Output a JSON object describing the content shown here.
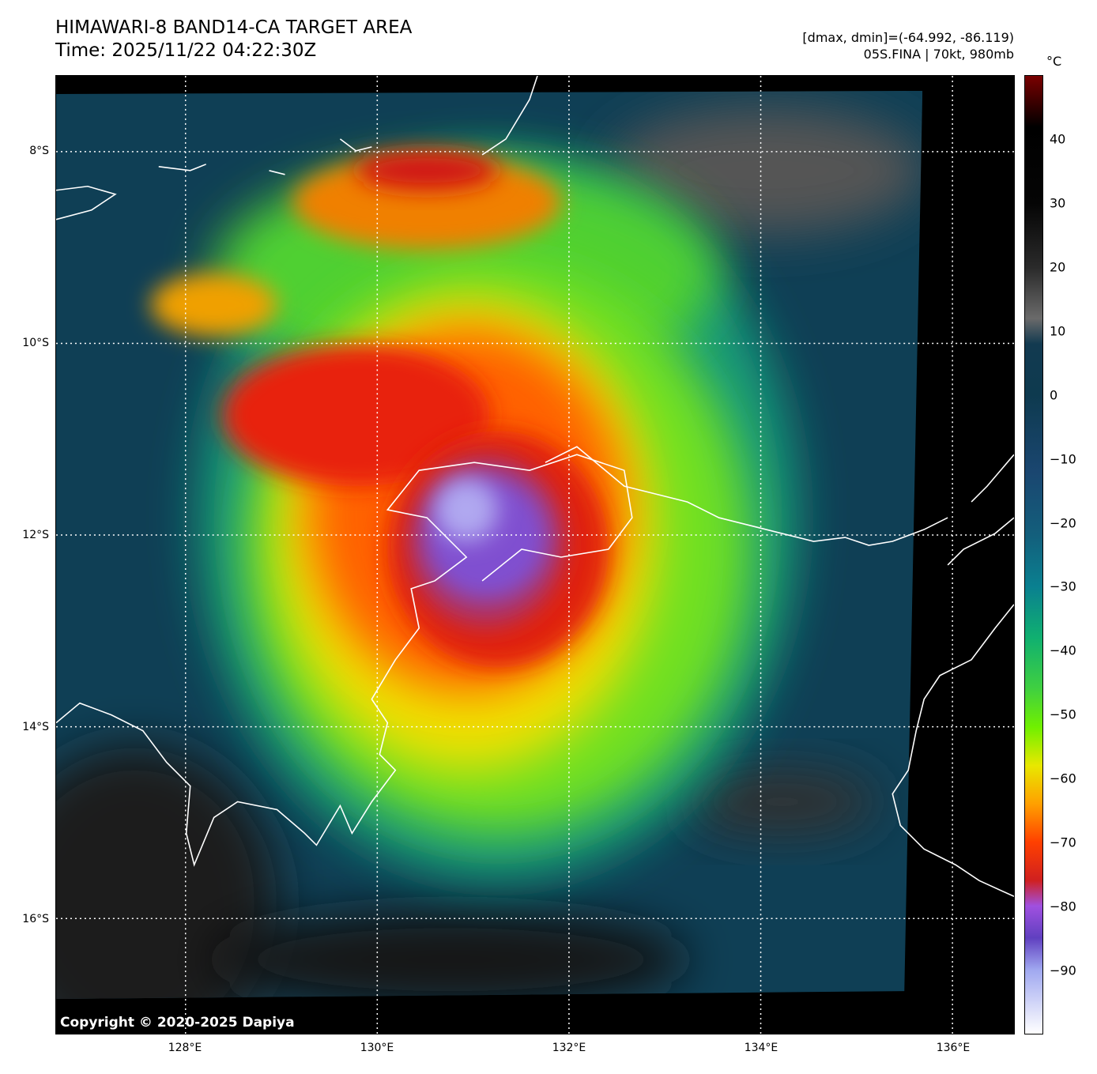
{
  "header": {
    "title": "HIMAWARI-8 BAND14-CA TARGET AREA",
    "time": "Time: 2025/11/22 04:22:30Z",
    "range": "[dmax, dmin]=(-64.992, -86.119)",
    "storm": "05S.FINA | 70kt, 980mb"
  },
  "colorbar": {
    "unit": "°C",
    "min": -100,
    "max": 50,
    "ticks": [
      "40",
      "30",
      "20",
      "10",
      "0",
      "−10",
      "−20",
      "−30",
      "−40",
      "−50",
      "−60",
      "−70",
      "−80",
      "−90"
    ],
    "tick_values": [
      40,
      30,
      20,
      10,
      0,
      -10,
      -20,
      -30,
      -40,
      -50,
      -60,
      -70,
      -80,
      -90
    ],
    "stops": [
      [
        50,
        "#7a0000"
      ],
      [
        42,
        "#000000"
      ],
      [
        30,
        "#050505"
      ],
      [
        20,
        "#2a2a2a"
      ],
      [
        12,
        "#6a6a6a"
      ],
      [
        8,
        "#123a50"
      ],
      [
        0,
        "#0e3a4f"
      ],
      [
        -12,
        "#1a4670"
      ],
      [
        -22,
        "#135f7c"
      ],
      [
        -30,
        "#0a8090"
      ],
      [
        -38,
        "#10b070"
      ],
      [
        -46,
        "#40d040"
      ],
      [
        -52,
        "#70f000"
      ],
      [
        -58,
        "#e8e800"
      ],
      [
        -64,
        "#ffa000"
      ],
      [
        -70,
        "#ff4000"
      ],
      [
        -76,
        "#d02020"
      ],
      [
        -80,
        "#a050e0"
      ],
      [
        -85,
        "#6040c0"
      ],
      [
        -90,
        "#a0a8f0"
      ],
      [
        -100,
        "#ffffff"
      ]
    ]
  },
  "axes": {
    "lon_labels": [
      "128°E",
      "130°E",
      "132°E",
      "134°E",
      "136°E"
    ],
    "lon_values": [
      128,
      130,
      132,
      134,
      136
    ],
    "lat_labels": [
      "8°S",
      "10°S",
      "12°S",
      "14°S",
      "16°S"
    ],
    "lat_values": [
      -8,
      -10,
      -12,
      -14,
      -16
    ]
  },
  "copyright": "Copyright © 2020-2025 Dapiya"
}
